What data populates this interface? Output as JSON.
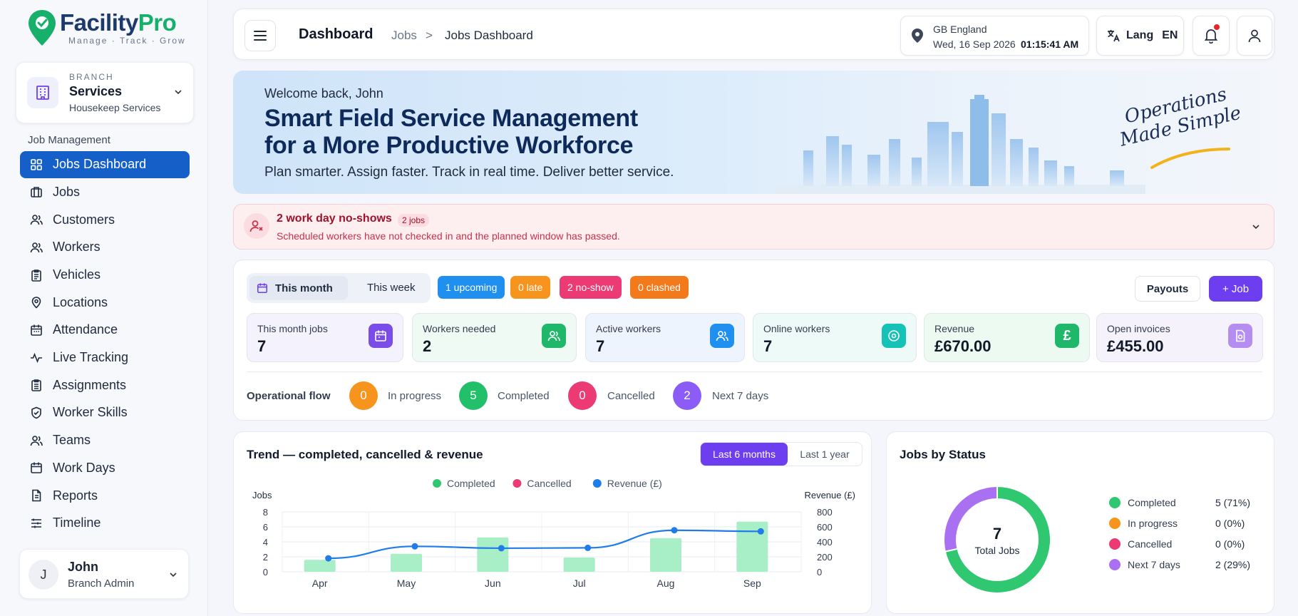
{
  "brand": {
    "name_part1": "Facility",
    "name_part2": "Pro",
    "tagline": "Manage · Track · Grow",
    "colors": {
      "primary": "#1c3a6b",
      "accent": "#17b06b"
    }
  },
  "branch": {
    "kicker": "BRANCH",
    "name": "Services",
    "subtitle": "Housekeep Services",
    "icon": "building-icon"
  },
  "sidebar": {
    "section_label": "Job Management",
    "items": [
      {
        "label": "Jobs Dashboard",
        "icon": "grid-icon",
        "active": true
      },
      {
        "label": "Jobs",
        "icon": "briefcase-icon"
      },
      {
        "label": "Customers",
        "icon": "users-icon"
      },
      {
        "label": "Workers",
        "icon": "users-icon"
      },
      {
        "label": "Vehicles",
        "icon": "clipboard-icon"
      },
      {
        "label": "Locations",
        "icon": "location-pin-icon"
      },
      {
        "label": "Attendance",
        "icon": "calendar-icon"
      },
      {
        "label": "Live Tracking",
        "icon": "activity-icon"
      },
      {
        "label": "Assignments",
        "icon": "clipboard-list-icon"
      },
      {
        "label": "Worker Skills",
        "icon": "shield-check-icon"
      },
      {
        "label": "Teams",
        "icon": "users-icon"
      },
      {
        "label": "Work Days",
        "icon": "calendar-icon"
      },
      {
        "label": "Reports",
        "icon": "report-icon"
      },
      {
        "label": "Timeline",
        "icon": "sliders-icon"
      }
    ]
  },
  "user": {
    "initial": "J",
    "name": "John",
    "role": "Branch Admin"
  },
  "header": {
    "title": "Dashboard",
    "breadcrumb": [
      "Jobs",
      "Jobs Dashboard"
    ],
    "breadcrumb_sep": ">",
    "location": {
      "region": "GB England",
      "date": "Wed, 16 Sep 2026",
      "time": "01:15:41 AM"
    },
    "lang": {
      "label": "Lang",
      "value": "EN"
    }
  },
  "banner": {
    "welcome": "Welcome back, John",
    "headline_line1": "Smart Field Service Management",
    "headline_line2": "for a More Productive Workforce",
    "tagline": "Plan smarter. Assign faster. Track in real time. Deliver better service.",
    "slogan_line1": "Operations",
    "slogan_line2": "Made Simple"
  },
  "alert": {
    "title": "2 work day no-shows",
    "pill": "2 jobs",
    "text": "Scheduled workers have not checked in and the planned window has passed."
  },
  "overview": {
    "period_options": [
      "This month",
      "This week"
    ],
    "period_selected": "This month",
    "chips": [
      {
        "label": "1 upcoming",
        "color": "#1f8ff0"
      },
      {
        "label": "0 late",
        "color": "#f7941d"
      },
      {
        "label": "2 no-show",
        "color": "#ec3b74"
      },
      {
        "label": "0 clashed",
        "color": "#f27a1a"
      }
    ],
    "payouts_label": "Payouts",
    "add_job_label": "+ Job",
    "stats": [
      {
        "label": "This month jobs",
        "value": "7",
        "icon": "calendar-icon",
        "bg": "#f4f2fc",
        "icon_bg": "#7a4de8"
      },
      {
        "label": "Workers needed",
        "value": "2",
        "icon": "users-icon",
        "bg": "#eefaf3",
        "icon_bg": "#1fb86b"
      },
      {
        "label": "Active workers",
        "value": "7",
        "icon": "users-icon",
        "bg": "#eef4fd",
        "icon_bg": "#1f8ff0"
      },
      {
        "label": "Online workers",
        "value": "7",
        "icon": "target-icon",
        "bg": "#eefaf8",
        "icon_bg": "#14c2b8"
      },
      {
        "label": "Revenue",
        "value": "£670.00",
        "icon": "pound-icon",
        "bg": "#edfaf2",
        "icon_bg": "#1fb86b"
      },
      {
        "label": "Open invoices",
        "value": "£455.00",
        "icon": "invoice-icon",
        "bg": "#f6f2fc",
        "icon_bg": "#b58cf0"
      }
    ],
    "flow_label": "Operational flow",
    "flow": [
      {
        "count": "0",
        "label": "In progress",
        "color": "#f7941d"
      },
      {
        "count": "5",
        "label": "Completed",
        "color": "#22c06b"
      },
      {
        "count": "0",
        "label": "Cancelled",
        "color": "#ec3b74"
      },
      {
        "count": "2",
        "label": "Next 7 days",
        "color": "#8b5cf6"
      }
    ]
  },
  "trend": {
    "title": "Trend — completed, cancelled & revenue",
    "range_options": [
      "Last 6 months",
      "Last 1 year"
    ],
    "range_selected": "Last 6 months"
  },
  "chart_data": [
    {
      "type": "bar",
      "title": "Trend — completed, cancelled & revenue",
      "categories": [
        "Apr",
        "May",
        "Jun",
        "Jul",
        "Aug",
        "Sep"
      ],
      "ylabel": "Jobs",
      "y2label": "Revenue (£)",
      "ylim": [
        0,
        8
      ],
      "y2lim": [
        0,
        800
      ],
      "yticks": [
        0,
        2,
        4,
        6,
        8
      ],
      "y2ticks": [
        0,
        200,
        400,
        600,
        800
      ],
      "legend": "top",
      "grid": true,
      "series": [
        {
          "name": "Completed",
          "kind": "bar",
          "axis": "left",
          "color": "#a8efc8",
          "values": [
            1.6,
            2.4,
            4.6,
            1.9,
            4.5,
            6.7
          ]
        },
        {
          "name": "Cancelled",
          "kind": "bar",
          "axis": "left",
          "color": "#ec3b74",
          "values": [
            0,
            0,
            0,
            0,
            0,
            0
          ]
        },
        {
          "name": "Revenue (£)",
          "kind": "line",
          "axis": "right",
          "color": "#1f7ce8",
          "values": [
            180,
            340,
            315,
            320,
            555,
            540
          ]
        }
      ]
    },
    {
      "type": "pie",
      "title": "Jobs by Status",
      "total_value": "7",
      "total_label": "Total Jobs",
      "categories": [
        "Completed",
        "In progress",
        "Cancelled",
        "Next 7 days"
      ],
      "values": [
        5,
        0,
        0,
        2
      ],
      "value_labels": [
        "5 (71%)",
        "0 (0%)",
        "0 (0%)",
        "2 (29%)"
      ],
      "colors": [
        "#2fc870",
        "#f7941d",
        "#ec3b74",
        "#a970f2"
      ],
      "legend": "right"
    }
  ]
}
